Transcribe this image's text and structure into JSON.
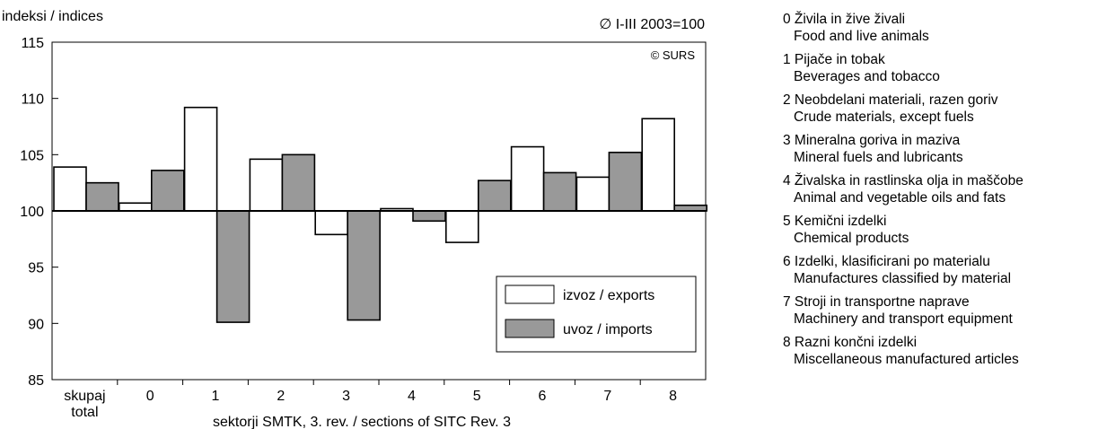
{
  "chart_data": {
    "type": "bar",
    "ylabel": "indeksi / indices",
    "base_note": "∅ I-III 2003=100",
    "copyright": "© SURS",
    "xlabel": "sektorji SMTK, 3. rev. / sections of SITC Rev. 3",
    "ylim": [
      85,
      115
    ],
    "yticks": [
      85,
      90,
      95,
      100,
      105,
      110,
      115
    ],
    "baseline": 100,
    "categories": [
      "skupaj\ntotal",
      "0",
      "1",
      "2",
      "3",
      "4",
      "5",
      "6",
      "7",
      "8"
    ],
    "series": [
      {
        "name": "izvoz / exports",
        "color": "#ffffff",
        "values": [
          103.9,
          100.7,
          109.2,
          104.6,
          97.9,
          100.2,
          97.2,
          105.7,
          103.0,
          108.2
        ]
      },
      {
        "name": "uvoz / imports",
        "color": "#999999",
        "values": [
          102.5,
          103.6,
          90.1,
          105.0,
          90.3,
          99.1,
          102.7,
          103.4,
          105.2,
          100.5
        ]
      }
    ],
    "legend_position": "lower-right"
  },
  "sections": [
    {
      "si": "0 Živila in žive živali",
      "en": "Food and live animals"
    },
    {
      "si": "1 Pijače in tobak",
      "en": "Beverages and tobacco"
    },
    {
      "si": "2 Neobdelani materiali, razen goriv",
      "en": "Crude materials, except fuels"
    },
    {
      "si": "3 Mineralna goriva in maziva",
      "en": "Mineral fuels and lubricants"
    },
    {
      "si": "4 Živalska in rastlinska olja in maščobe",
      "en": "Animal and vegetable oils and fats"
    },
    {
      "si": "5 Kemični izdelki",
      "en": "Chemical products"
    },
    {
      "si": "6 Izdelki, klasificirani po materialu",
      "en": "Manufactures classified by material"
    },
    {
      "si": "7 Stroji in transportne naprave",
      "en": "Machinery and transport equipment"
    },
    {
      "si": "8 Razni končni izdelki",
      "en": "Miscellaneous manufactured articles"
    }
  ]
}
